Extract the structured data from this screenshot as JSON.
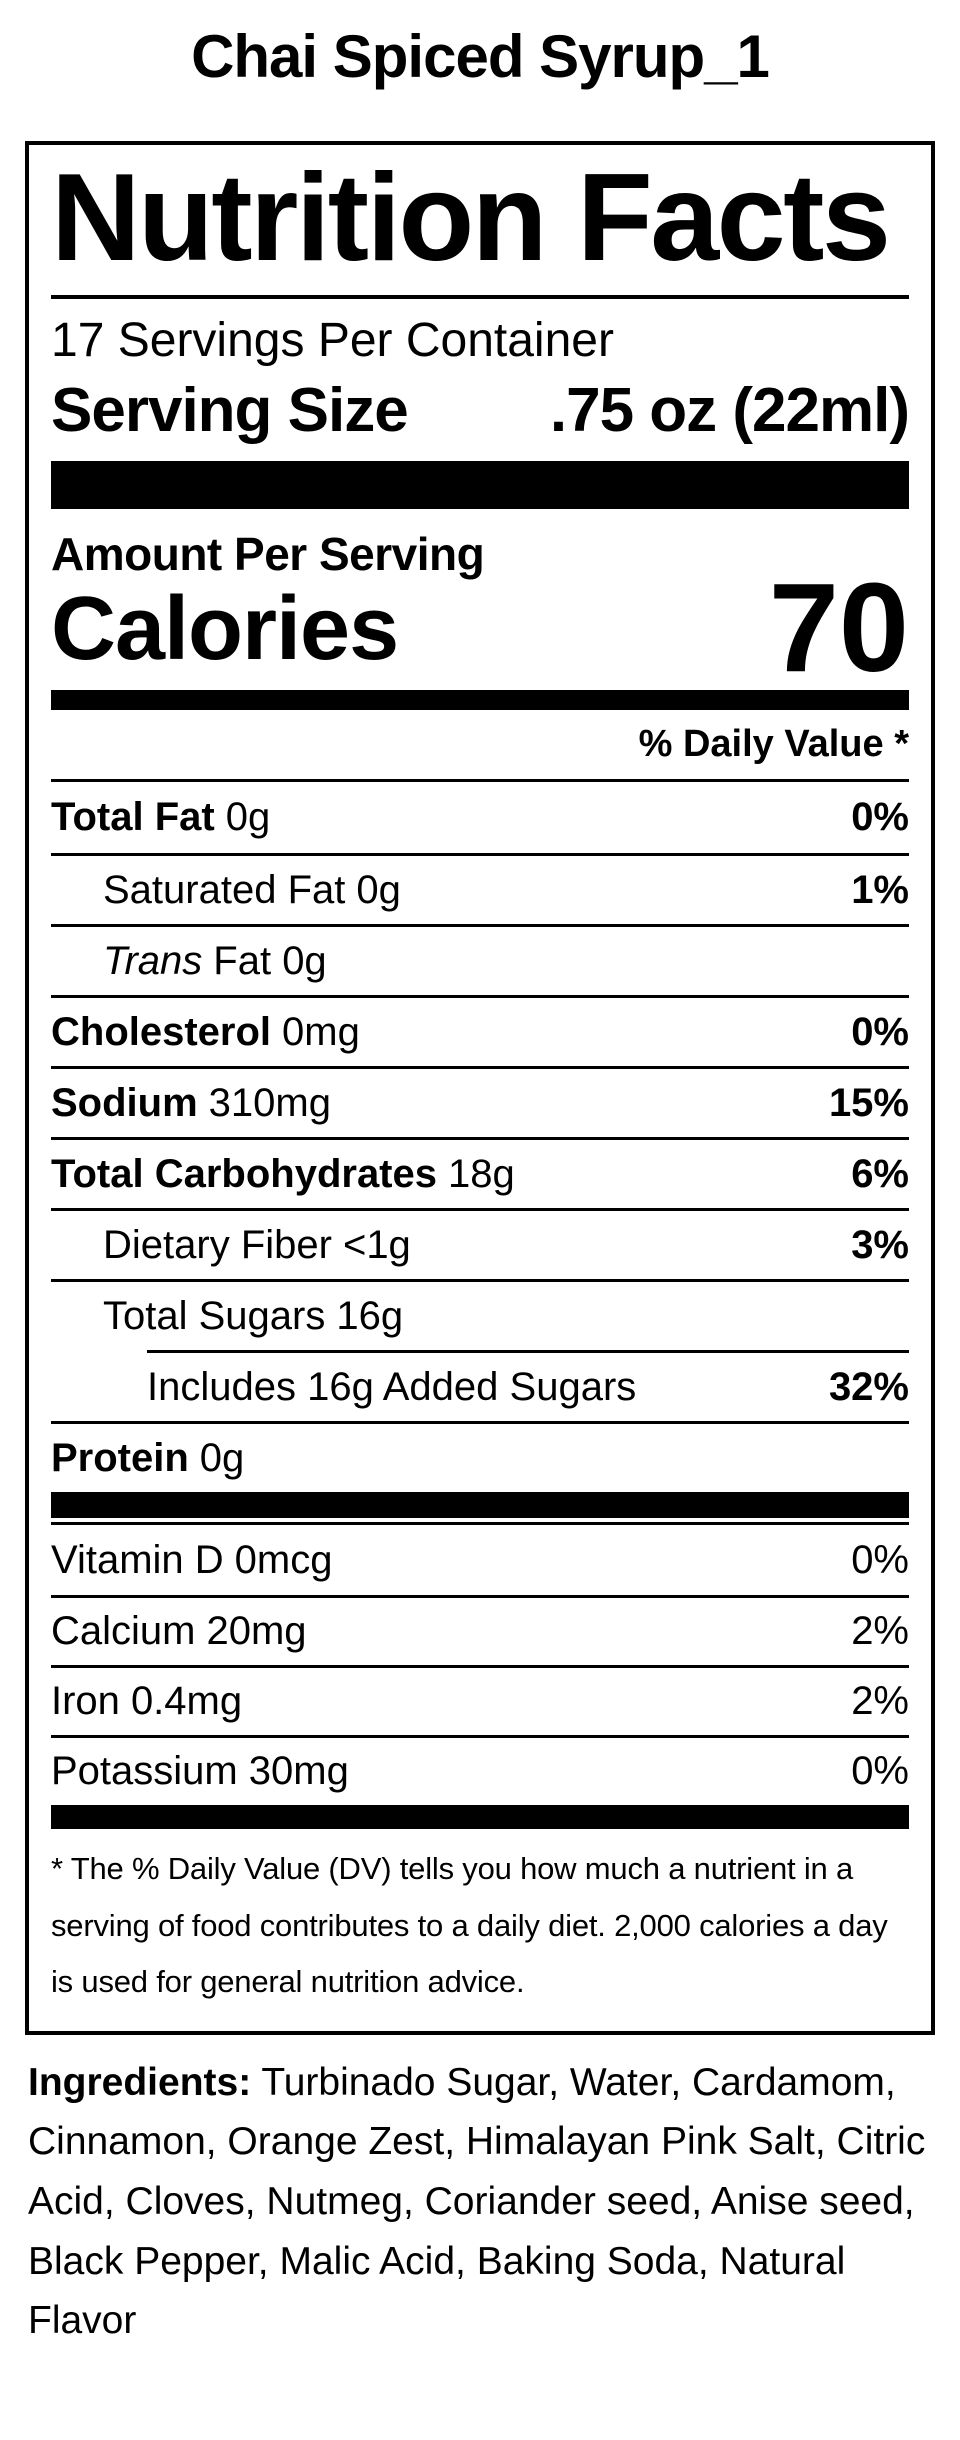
{
  "page": {
    "title": "Chai Spiced Syrup_1"
  },
  "colors": {
    "text": "#000000",
    "background": "#ffffff",
    "rule": "#000000"
  },
  "label": {
    "heading": "Nutrition Facts",
    "servings_per_container": "17 Servings Per Container",
    "serving_size_label": "Serving Size",
    "serving_size_value": ".75 oz (22ml)",
    "amount_per_serving": "Amount Per Serving",
    "calories_label": "Calories",
    "calories_value": "70",
    "daily_value_header": "% Daily Value *",
    "rows": [
      {
        "name": "Total Fat",
        "amount": "0g",
        "dv": "0%"
      },
      {
        "name": "Saturated Fat",
        "amount": "0g",
        "dv": "1%"
      },
      {
        "name": "Trans",
        "amount": "Fat 0g",
        "dv": ""
      },
      {
        "name": "Cholesterol",
        "amount": "0mg",
        "dv": "0%"
      },
      {
        "name": "Sodium",
        "amount": "310mg",
        "dv": "15%"
      },
      {
        "name": "Total Carbohydrates",
        "amount": "18g",
        "dv": "6%"
      },
      {
        "name": "Dietary Fiber",
        "amount": "<1g",
        "dv": "3%"
      },
      {
        "name": "Total Sugars",
        "amount": "16g",
        "dv": ""
      },
      {
        "name": "Includes 16g Added Sugars",
        "amount": "",
        "dv": "32%"
      },
      {
        "name": "Protein",
        "amount": "0g",
        "dv": ""
      }
    ],
    "vitamins": [
      {
        "name": "Vitamin D",
        "amount": "0mcg",
        "dv": "0%"
      },
      {
        "name": "Calcium",
        "amount": "20mg",
        "dv": "2%"
      },
      {
        "name": "Iron",
        "amount": "0.4mg",
        "dv": "2%"
      },
      {
        "name": "Potassium",
        "amount": "30mg",
        "dv": "0%"
      }
    ],
    "footnote": "* The % Daily Value (DV) tells you how much a nutrient in a serving of food contributes to a daily diet. 2,000 calories a day is used for general nutrition advice."
  },
  "ingredients": {
    "label": "Ingredients:",
    "text": "Turbinado Sugar, Water, Cardamom, Cinnamon, Orange Zest, Himalayan Pink Salt, Citric Acid, Cloves, Nutmeg, Coriander seed, Anise seed, Black Pepper, Malic Acid, Baking Soda, Natural Flavor"
  }
}
